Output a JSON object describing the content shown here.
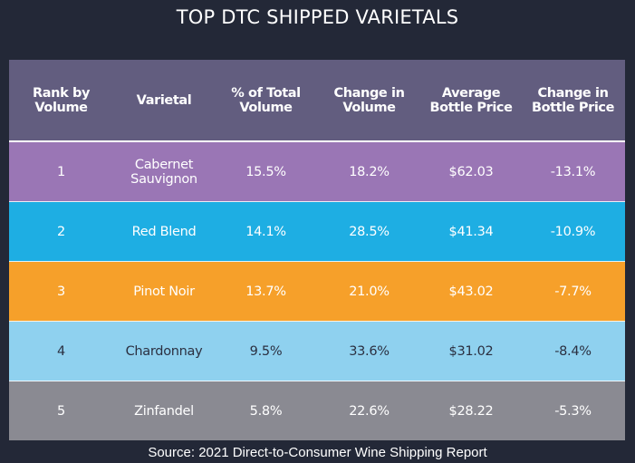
{
  "title": "TOP DTC SHIPPED VARIETALS",
  "source": "Source: 2021 Direct-to-Consumer Wine Shipping Report",
  "colors": {
    "background": "#232837",
    "header": "#625d7f",
    "row_1": "#9a76b5",
    "row_2": "#1eaee3",
    "row_3": "#f6a02a",
    "row_4": "#8fd1ef",
    "row_5": "#8a8a92",
    "text_light": "#ffffff",
    "text_dark": "#2b3041"
  },
  "chart_data": {
    "type": "table",
    "columns": [
      "Rank by\nVolume",
      "Varietal",
      "% of Total\nVolume",
      "Change in\nVolume",
      "Average\nBottle Price",
      "Change in\nBottle Price"
    ],
    "rows": [
      [
        "1",
        "Cabernet\nSauvignon",
        "15.5%",
        "18.2%",
        "$62.03",
        "-13.1%"
      ],
      [
        "2",
        "Red Blend",
        "14.1%",
        "28.5%",
        "$41.34",
        "-10.9%"
      ],
      [
        "3",
        "Pinot Noir",
        "13.7%",
        "21.0%",
        "$43.02",
        "-7.7%"
      ],
      [
        "4",
        "Chardonnay",
        "9.5%",
        "33.6%",
        "$31.02",
        "-8.4%"
      ],
      [
        "5",
        "Zinfandel",
        "5.8%",
        "22.6%",
        "$28.22",
        "-5.3%"
      ]
    ]
  }
}
